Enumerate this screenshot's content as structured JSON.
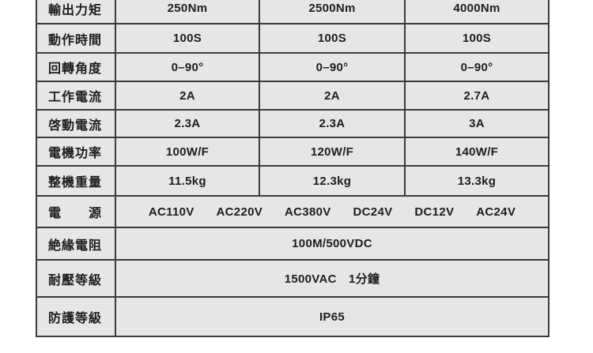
{
  "specs": {
    "rows": [
      {
        "label": "輸出力矩",
        "values": [
          "250Nm",
          "2500Nm",
          "4000Nm"
        ]
      },
      {
        "label": "動作時間",
        "values": [
          "100S",
          "100S",
          "100S"
        ]
      },
      {
        "label": "回轉角度",
        "values": [
          "0–90°",
          "0–90°",
          "0–90°"
        ]
      },
      {
        "label": "工作電流",
        "values": [
          "2A",
          "2A",
          "2.7A"
        ]
      },
      {
        "label": "啓動電流",
        "values": [
          "2.3A",
          "2.3A",
          "3A"
        ]
      },
      {
        "label": "電機功率",
        "values": [
          "100W/F",
          "120W/F",
          "140W/F"
        ]
      },
      {
        "label": "整機重量",
        "values": [
          "11.5kg",
          "12.3kg",
          "13.3kg"
        ]
      }
    ],
    "power": {
      "label": "電　　源",
      "options": [
        "AC110V",
        "AC220V",
        "AC380V",
        "DC24V",
        "DC12V",
        "AC24V"
      ]
    },
    "insulation": {
      "label": "絶緣電阻",
      "value": "100M/500VDC"
    },
    "withstand": {
      "label": "耐壓等級",
      "value": "1500VAC　1分鐘"
    },
    "protection": {
      "label": "防護等級",
      "value": "IP65"
    }
  },
  "colors": {
    "cell_bg": "#e6e6e6",
    "border": "#3b3b3b",
    "text": "#1d1d1d",
    "page_bg": "#ffffff"
  }
}
